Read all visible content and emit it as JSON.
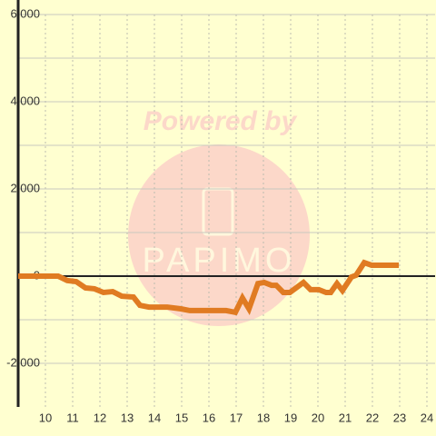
{
  "chart_data": {
    "type": "line",
    "watermark": {
      "line1": "Powered by",
      "line2": "PAPIMO"
    },
    "x": [
      9,
      10.47,
      10.8,
      11.13,
      11.47,
      11.8,
      12.13,
      12.47,
      12.8,
      13.23,
      13.47,
      13.8,
      14.47,
      14.97,
      15.3,
      16.63,
      16.97,
      17.23,
      17.47,
      17.8,
      18.03,
      18.3,
      18.47,
      18.73,
      18.97,
      19.47,
      19.73,
      20.03,
      20.3,
      20.47,
      20.7,
      20.9,
      21.23,
      21.4,
      21.7,
      21.97,
      22.97
    ],
    "series": [
      {
        "color": "#e07b22",
        "values": [
          0,
          0,
          -100,
          -125,
          -270,
          -290,
          -375,
          -355,
          -460,
          -480,
          -670,
          -710,
          -710,
          -750,
          -790,
          -790,
          -830,
          -500,
          -750,
          -170,
          -145,
          -210,
          -210,
          -375,
          -375,
          -145,
          -310,
          -310,
          -375,
          -375,
          -170,
          -330,
          -20,
          20,
          310,
          250,
          250
        ]
      }
    ],
    "xlim": [
      9,
      24.3
    ],
    "ylim": [
      -3000,
      6000
    ],
    "xticks": [
      10,
      11,
      12,
      13,
      14,
      15,
      16,
      17,
      18,
      19,
      20,
      21,
      22,
      23,
      24
    ],
    "yticks": [
      {
        "value": -2000,
        "label": "-2,000"
      },
      0,
      {
        "value": 2000,
        "label": "2,000"
      },
      {
        "value": 4000,
        "label": "4,000"
      },
      {
        "value": 6000,
        "label": "6,000"
      }
    ],
    "yminorticks": [
      -1000,
      1000,
      3000,
      5000
    ],
    "grid": true
  }
}
